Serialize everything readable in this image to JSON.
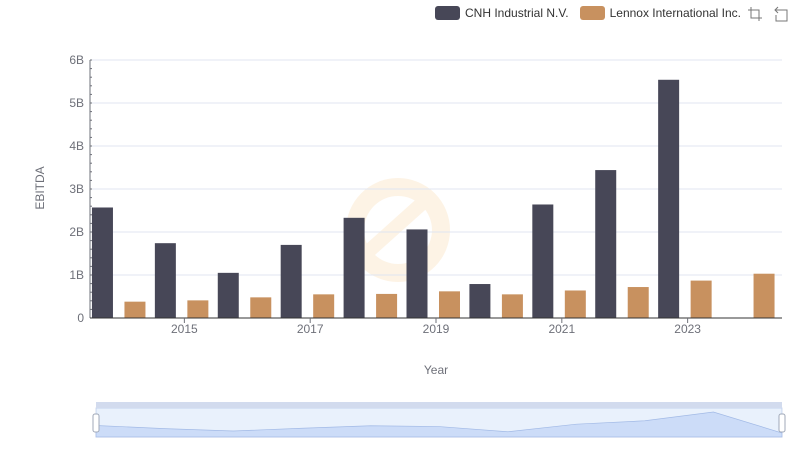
{
  "legend": [
    {
      "name": "CNH Industrial N.V.",
      "color": "#474757"
    },
    {
      "name": "Lennox International Inc.",
      "color": "#c8915f"
    }
  ],
  "toolbox": [
    "zoom-icon",
    "restore-icon"
  ],
  "chart_data": {
    "type": "bar",
    "categories": [
      "2014",
      "2015",
      "2016",
      "2017",
      "2018",
      "2019",
      "2020",
      "2021",
      "2022",
      "2023",
      "2024"
    ],
    "x_tick_labels": [
      "2015",
      "2017",
      "2019",
      "2021",
      "2023"
    ],
    "xlabel": "Year",
    "ylabel": "EBITDA",
    "ylim": [
      0,
      6000000000
    ],
    "y_tick_labels": [
      "0",
      "1B",
      "2B",
      "3B",
      "4B",
      "5B",
      "6B"
    ],
    "y_tick_values": [
      0,
      1000000000,
      2000000000,
      3000000000,
      4000000000,
      5000000000,
      6000000000
    ],
    "grid": true,
    "legend_position": "top-right",
    "series": [
      {
        "name": "CNH Industrial N.V.",
        "color": "#474757",
        "values": [
          2570000000,
          1740000000,
          1050000000,
          1700000000,
          2330000000,
          2060000000,
          790000000,
          2640000000,
          3440000000,
          5540000000,
          null
        ]
      },
      {
        "name": "Lennox International Inc.",
        "color": "#c8915f",
        "values": [
          380000000,
          410000000,
          480000000,
          550000000,
          560000000,
          620000000,
          550000000,
          640000000,
          720000000,
          870000000,
          1030000000
        ]
      }
    ],
    "data_zoom": {
      "range": [
        0,
        100
      ]
    }
  }
}
